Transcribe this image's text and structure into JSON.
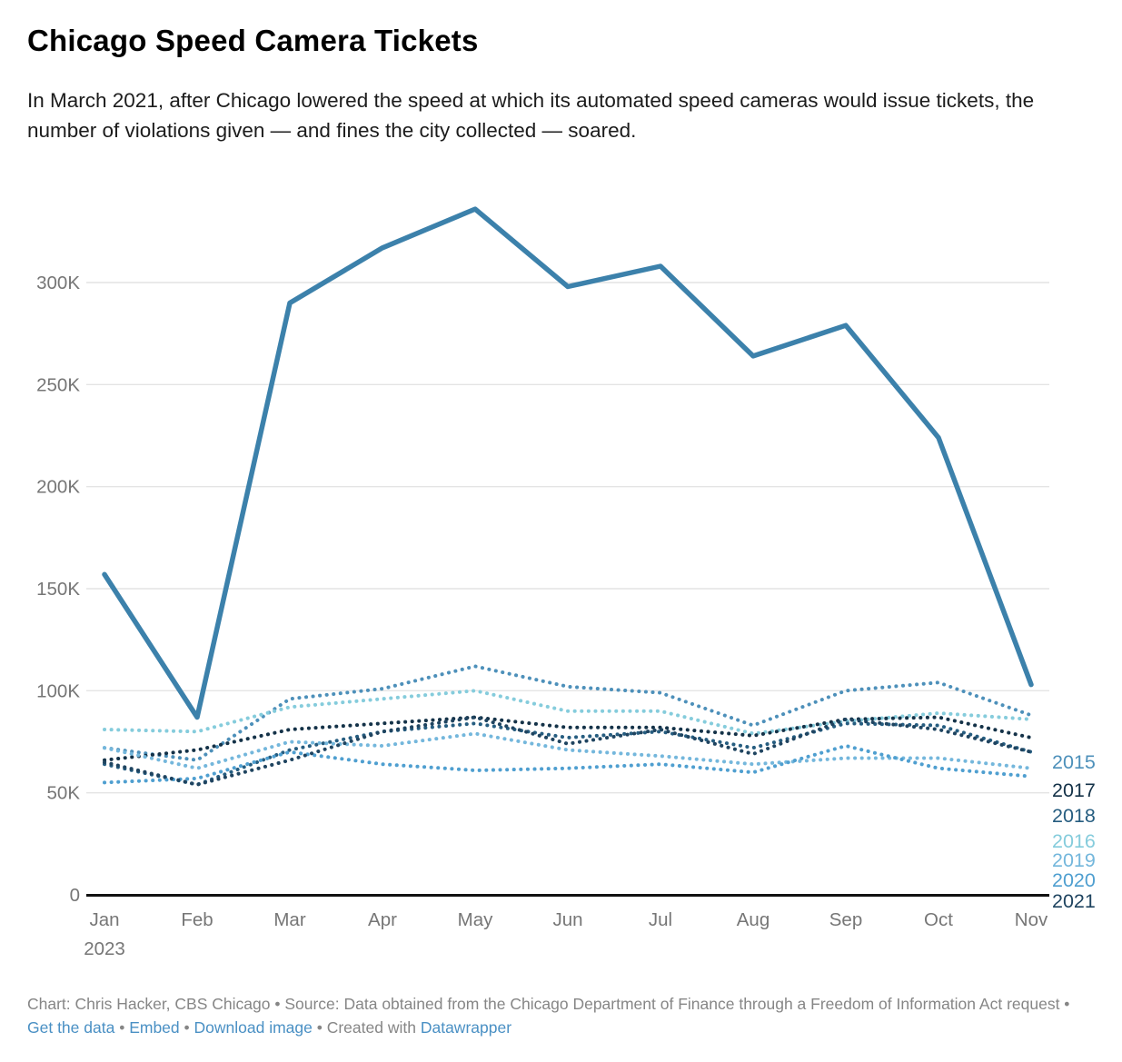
{
  "header": {
    "title": "Chicago Speed Camera Tickets",
    "subtitle": "In March 2021, after Chicago lowered the speed at which its automated speed cameras would issue tickets, the number of violations given — and fines the city collected — soared."
  },
  "chart_data": {
    "type": "line",
    "x_categories": [
      "Jan",
      "Feb",
      "Mar",
      "Apr",
      "May",
      "Jun",
      "Jul",
      "Aug",
      "Sep",
      "Oct",
      "Nov"
    ],
    "x_axis_year_label": "2023",
    "ylim": [
      0,
      340000
    ],
    "grid": true,
    "y_ticks": [
      {
        "value": 0,
        "label": "0"
      },
      {
        "value": 50000,
        "label": "50K"
      },
      {
        "value": 100000,
        "label": "100K"
      },
      {
        "value": 150000,
        "label": "150K"
      },
      {
        "value": 200000,
        "label": "200K"
      },
      {
        "value": 250000,
        "label": "250K"
      },
      {
        "value": 300000,
        "label": "300K"
      }
    ],
    "series": [
      {
        "name": "2023",
        "style": "bold",
        "color": "#3c81ab",
        "values": [
          157000,
          87000,
          290000,
          317000,
          336000,
          298000,
          308000,
          264000,
          279000,
          224000,
          103000
        ]
      },
      {
        "name": "2015",
        "style": "dotted",
        "color": "#4d90ba",
        "values": [
          72000,
          66000,
          96000,
          101000,
          112000,
          102000,
          99000,
          83000,
          100000,
          104000,
          88000
        ]
      },
      {
        "name": "2016",
        "style": "dotted",
        "color": "#85ccdc",
        "values": [
          81000,
          80000,
          92000,
          96000,
          100000,
          90000,
          90000,
          79000,
          85000,
          89000,
          86000
        ]
      },
      {
        "name": "2017",
        "style": "dotted",
        "color": "#143248",
        "values": [
          66000,
          71000,
          81000,
          84000,
          87000,
          82000,
          82000,
          78000,
          86000,
          87000,
          77000
        ]
      },
      {
        "name": "2018",
        "style": "dotted",
        "color": "#265d80",
        "values": [
          64000,
          54000,
          71000,
          80000,
          84000,
          77000,
          80000,
          72000,
          84000,
          83000,
          70000
        ]
      },
      {
        "name": "2019",
        "style": "dotted",
        "color": "#74b7dc",
        "values": [
          72000,
          62000,
          75000,
          73000,
          79000,
          71000,
          68000,
          64000,
          67000,
          67000,
          62000
        ]
      },
      {
        "name": "2020",
        "style": "dotted",
        "color": "#4f9fd0",
        "values": [
          55000,
          57000,
          70000,
          64000,
          61000,
          62000,
          64000,
          60000,
          73000,
          62000,
          58000
        ]
      },
      {
        "name": "2021",
        "style": "dotted",
        "color": "#1f4460",
        "values": [
          65000,
          54000,
          66000,
          80000,
          87000,
          74000,
          81000,
          69000,
          86000,
          81000,
          70000
        ]
      }
    ],
    "end_label_order": [
      "2015",
      "2017",
      "2018",
      "2016",
      "2019",
      "2020",
      "2021"
    ],
    "legend_position": "right-of-line-ends"
  },
  "footer": {
    "credit": "Chart: Chris Hacker, CBS Chicago",
    "separator": " • ",
    "source": "Source: Data obtained from the Chicago Department of Finance through a Freedom of Information Act request",
    "links": {
      "get_data": "Get the data",
      "embed": "Embed",
      "download_image": "Download image"
    },
    "created_with": "Created with",
    "datawrapper": "Datawrapper"
  }
}
